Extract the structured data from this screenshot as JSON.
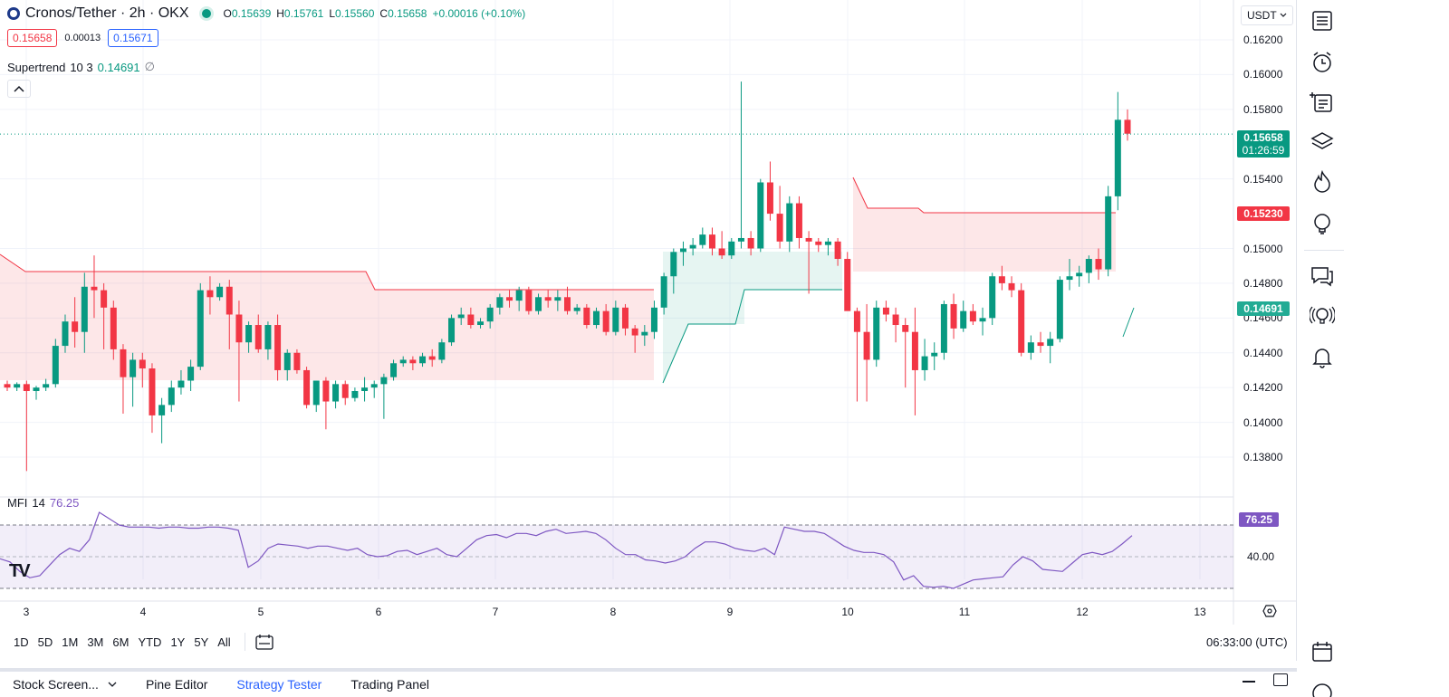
{
  "header": {
    "symbol_title": "Cronos/Tether · 2h · OKX",
    "ohlc": [
      {
        "key": "O",
        "value": "0.15639"
      },
      {
        "key": "H",
        "value": "0.15761"
      },
      {
        "key": "L",
        "value": "0.15560"
      },
      {
        "key": "C",
        "value": "0.15658"
      }
    ],
    "change": "+0.00016 (+0.10%)",
    "sell_price": "0.15658",
    "spread": "0.00013",
    "buy_price": "0.15671"
  },
  "indicator": {
    "name": "Supertrend",
    "params": "10 3",
    "value": "0.14691",
    "extra": "∅"
  },
  "mfi": {
    "name": "MFI",
    "params": "14",
    "value": "76.25",
    "level_label": "40.00"
  },
  "currency_selector": "USDT",
  "price_axis": [
    "0.16200",
    "0.16000",
    "0.15800",
    "0.15400",
    "0.15000",
    "0.14800",
    "0.14600",
    "0.14400",
    "0.14200",
    "0.14000",
    "0.13800"
  ],
  "tags": {
    "last_price": "0.15658",
    "countdown": "01:26:59",
    "supertrend_upper": "0.15230",
    "supertrend_lower": "0.14691",
    "mfi_value": "76.25"
  },
  "time_axis": [
    "3",
    "4",
    "5",
    "6",
    "7",
    "8",
    "9",
    "10",
    "11",
    "12",
    "13"
  ],
  "range_buttons": [
    "1D",
    "5D",
    "1M",
    "3M",
    "6M",
    "YTD",
    "1Y",
    "5Y",
    "All"
  ],
  "clock": "06:33:00 (UTC)",
  "bottom_tabs": [
    "Stock Screen...",
    "Pine Editor",
    "Strategy Tester",
    "Trading Panel"
  ],
  "colors": {
    "up": "#089981",
    "down": "#f23645",
    "supertrend_up_fill": "rgba(8,153,129,0.10)",
    "supertrend_down_fill": "rgba(242,54,69,0.12)",
    "mfi_line": "#7e57c2",
    "accent": "#2962ff"
  },
  "sidebar_icons": [
    "watchlist-icon",
    "alert-clock-icon",
    "add-note-icon",
    "layers-icon",
    "hotlist-fire-icon",
    "ideas-bulb-icon",
    "chat-icon",
    "streams-icon",
    "notification-bell-icon",
    "calendar-icon"
  ]
}
